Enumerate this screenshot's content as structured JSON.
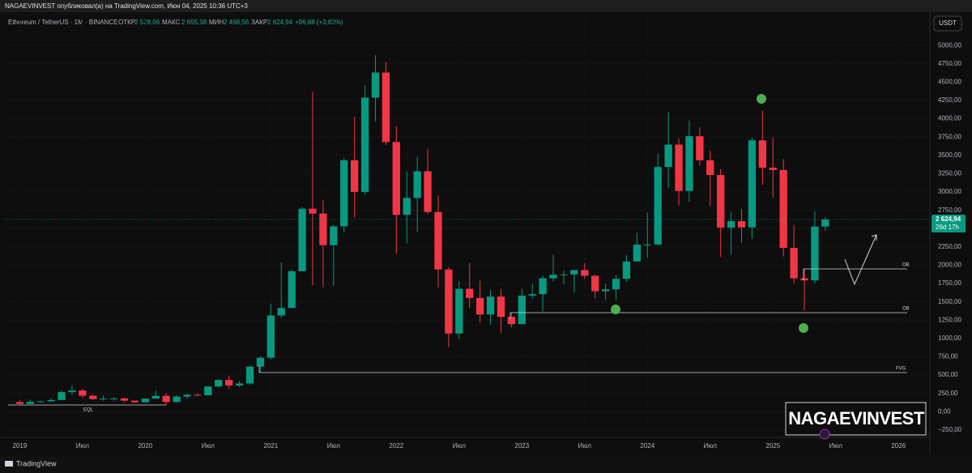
{
  "header": {
    "publisher": "NAGAEVINVEST опубликовал(а) на TradingView.com, Июн 04, 2025 10:36 UTC+3",
    "symbol": "Ethereum / TetherUS · 1M · BINANCE",
    "open_label": "ОТКР",
    "open_value": "2 528,06",
    "high_label": "МАКС",
    "high_value": "2 655,38",
    "low_label": "МИН",
    "low_value": "2 468,56",
    "close_label": "ЗАКР",
    "close_value": "2 624,94",
    "change": "+96,88 (+3,83%)",
    "currency": "USDT"
  },
  "chart_data": {
    "type": "candlestick",
    "up_color": "#089981",
    "down_color": "#f23645",
    "open": [
      133,
      107,
      136,
      141,
      160,
      268,
      290,
      218,
      172,
      180,
      182,
      152,
      129,
      179,
      217,
      133,
      207,
      231,
      225,
      345,
      434,
      359,
      386,
      616,
      737,
      1314,
      1416,
      1918,
      2772,
      2706,
      2274,
      2531,
      3433,
      3001,
      4288,
      4631,
      3682,
      2688,
      2919,
      3283,
      2727,
      1942,
      1067,
      1678,
      1553,
      1328,
      1572,
      1295,
      1196,
      1585,
      1605,
      1822,
      1870,
      1874,
      1934,
      1856,
      1645,
      1671,
      1815,
      2052,
      2281,
      2283,
      3341,
      3647,
      3014,
      3762,
      3432,
      3232,
      2513,
      2602,
      2517,
      3705,
      3332,
      3300,
      2237,
      1822,
      1793,
      2528.06
    ],
    "high": [
      160,
      165,
      150,
      184,
      288,
      364,
      316,
      238,
      225,
      199,
      194,
      153,
      185,
      288,
      252,
      228,
      250,
      253,
      348,
      446,
      489,
      420,
      622,
      756,
      1475,
      2041,
      1944,
      2797,
      4372,
      2892,
      2552,
      3466,
      4028,
      4460,
      4868,
      4778,
      3900,
      3282,
      3479,
      3581,
      2955,
      1972,
      1783,
      2030,
      1790,
      1664,
      1679,
      1352,
      1680,
      1743,
      1857,
      2142,
      1930,
      1935,
      2029,
      1870,
      1750,
      1865,
      2137,
      2445,
      2717,
      3523,
      4094,
      3730,
      3977,
      3887,
      3563,
      3312,
      2728,
      2770,
      3740,
      4107,
      3744,
      3450,
      2550,
      1955,
      2738,
      2655.38
    ],
    "low": [
      102,
      102,
      131,
      150,
      158,
      231,
      188,
      163,
      151,
      152,
      133,
      117,
      127,
      178,
      86,
      127,
      176,
      215,
      221,
      334,
      308,
      335,
      370,
      531,
      714,
      1283,
      1431,
      1930,
      1729,
      1700,
      1719,
      2450,
      2652,
      2960,
      3964,
      3643,
      2159,
      2300,
      2450,
      2700,
      1700,
      881,
      1000,
      1422,
      1220,
      1190,
      1073,
      1150,
      1190,
      1540,
      1370,
      1780,
      1740,
      1626,
      1815,
      1550,
      1531,
      1521,
      1775,
      2100,
      2100,
      2263,
      3056,
      2817,
      2865,
      3360,
      2810,
      2111,
      2150,
      2306,
      2360,
      3100,
      2921,
      2120,
      1754,
      1385,
      1750,
      2468.56
    ],
    "close": [
      107,
      136,
      141,
      160,
      268,
      290,
      218,
      172,
      180,
      182,
      152,
      129,
      179,
      217,
      133,
      207,
      231,
      225,
      345,
      434,
      359,
      386,
      616,
      737,
      1314,
      1416,
      1918,
      2772,
      2706,
      2274,
      2531,
      3433,
      3001,
      4288,
      4631,
      3682,
      2688,
      2919,
      3283,
      2727,
      1942,
      1067,
      1678,
      1553,
      1328,
      1572,
      1295,
      1196,
      1585,
      1605,
      1822,
      1870,
      1874,
      1934,
      1856,
      1645,
      1671,
      1815,
      2052,
      2281,
      2283,
      3341,
      3647,
      3014,
      3762,
      3432,
      3232,
      2513,
      2602,
      2517,
      3705,
      3332,
      3300,
      2237,
      1822,
      1793,
      2528.06,
      2624.94
    ],
    "xlim": [
      -1.5,
      87
    ],
    "xticks": [
      {
        "value": 0,
        "label": "2019"
      },
      {
        "value": 6,
        "label": "Июл"
      },
      {
        "value": 12,
        "label": "2020"
      },
      {
        "value": 18,
        "label": "Июл"
      },
      {
        "value": 24,
        "label": "2021"
      },
      {
        "value": 30,
        "label": "Июл"
      },
      {
        "value": 36,
        "label": "2022"
      },
      {
        "value": 42,
        "label": "Июл"
      },
      {
        "value": 48,
        "label": "2023"
      },
      {
        "value": 54,
        "label": "Июл"
      },
      {
        "value": 60,
        "label": "2024"
      },
      {
        "value": 66,
        "label": "Июл"
      },
      {
        "value": 72,
        "label": "2025"
      },
      {
        "value": 78,
        "label": "Июл"
      },
      {
        "value": 84,
        "label": "2026"
      }
    ],
    "ylim": [
      -350,
      5400
    ],
    "yticks": [
      {
        "value": -250,
        "label": "−250,00"
      },
      {
        "value": 0,
        "label": "0,00"
      },
      {
        "value": 250,
        "label": "250,00"
      },
      {
        "value": 500,
        "label": "500,00"
      },
      {
        "value": 750,
        "label": "750,00"
      },
      {
        "value": 1000,
        "label": "1000,00"
      },
      {
        "value": 1250,
        "label": "1250,00"
      },
      {
        "value": 1500,
        "label": "1500,00"
      },
      {
        "value": 1750,
        "label": "1750,00"
      },
      {
        "value": 2000,
        "label": "2000,00"
      },
      {
        "value": 2250,
        "label": "2250,00"
      },
      {
        "value": 2500,
        "label": "2500,00"
      },
      {
        "value": 2750,
        "label": "2750,00"
      },
      {
        "value": 3000,
        "label": "3000,00"
      },
      {
        "value": 3250,
        "label": "3250,00"
      },
      {
        "value": 3500,
        "label": "3500,00"
      },
      {
        "value": 3750,
        "label": "3750,00"
      },
      {
        "value": 4000,
        "label": "4000,00"
      },
      {
        "value": 4250,
        "label": "4250,00"
      },
      {
        "value": 4500,
        "label": "4500,00"
      },
      {
        "value": 4750,
        "label": "4750,00"
      },
      {
        "value": 5000,
        "label": "5000,00"
      }
    ],
    "price_marker": {
      "value": 2624.94,
      "label": "2 624,94"
    },
    "countdown": "26d 17h",
    "annotations": [
      "OB",
      "OB",
      "FVG",
      "EQL"
    ]
  },
  "watermark": "NAGAEVINVEST",
  "footer": "TradingView"
}
